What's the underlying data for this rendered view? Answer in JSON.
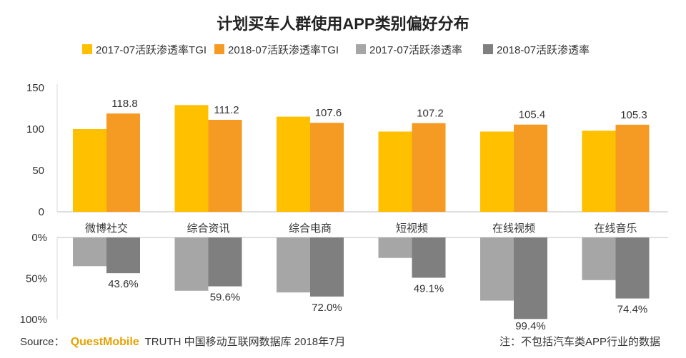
{
  "chart_data": {
    "type": "bar",
    "title": "计划买车人群使用APP类别偏好分布",
    "categories": [
      "微博社交",
      "综合资讯",
      "综合电商",
      "短视频",
      "在线视频",
      "在线音乐"
    ],
    "upper": {
      "ylim": [
        0,
        150
      ],
      "yticks": [
        "150",
        "100",
        "50",
        "0"
      ],
      "series": [
        {
          "name": "2017-07活跃渗透率TGI",
          "color": "#ffc000",
          "values": [
            100,
            129,
            115,
            97,
            97,
            98
          ]
        },
        {
          "name": "2018-07活跃渗透率TGI",
          "color": "#f59a23",
          "values": [
            118.8,
            111.2,
            107.6,
            107.2,
            105.4,
            105.3
          ],
          "labels": [
            "118.8",
            "111.2",
            "107.6",
            "107.2",
            "105.4",
            "105.3"
          ]
        }
      ]
    },
    "lower": {
      "ylim": [
        0,
        100
      ],
      "inverted": true,
      "yticks": [
        "0%",
        "50%",
        "100%"
      ],
      "series": [
        {
          "name": "2017-07活跃渗透率",
          "color": "#a6a6a6",
          "values": [
            35,
            65,
            67,
            25,
            77,
            52
          ]
        },
        {
          "name": "2018-07活跃渗透率",
          "color": "#7f7f7f",
          "values": [
            43.6,
            59.6,
            72.0,
            49.1,
            99.4,
            74.4
          ],
          "labels": [
            "43.6%",
            "59.6%",
            "72.0%",
            "49.1%",
            "99.4%",
            "74.4%"
          ]
        }
      ]
    },
    "legend_position": "top-center"
  },
  "footer": {
    "source_prefix": "Source：",
    "source_brand": "QuestMobile",
    "source_rest": "TRUTH 中国移动互联网数据库 2018年7月",
    "note": "注：不包括汽车类APP行业的数据"
  }
}
